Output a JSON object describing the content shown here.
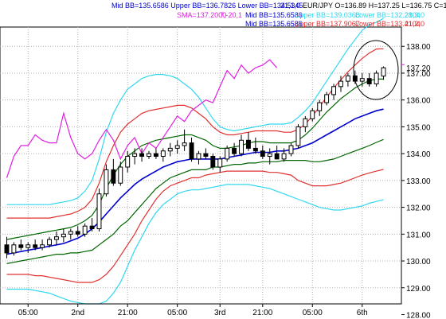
{
  "header": {
    "line1_left": "Mid BB=135.6586 Upper BB=136.7826 Lower BB=134.5345",
    "line1_mid": "21,1,0",
    "line1_right": "EUR/JPY O=136.89 H=137.25 L=136.75 C=137.20",
    "line2_sma": "SMA=137.2000",
    "line2_sma_params": "7,-20,1",
    "line2_bb": "Mid BB=135.6586",
    "line2_upper": "Upper BB=139.0368",
    "line2_lower": "Lower BB=132.2804",
    "line2_params": "21,3,0",
    "line3_bb": "Mid BB=135.6586",
    "line3_upper": "Upper BB=137.9067",
    "line3_lower": "Lower BB=133.4104",
    "line3_params": "21,2,0"
  },
  "colors": {
    "blue": "#0000cc",
    "green": "#006600",
    "red": "#e03030",
    "cyan": "#30d8f0",
    "magenta": "#e020e0",
    "grid": "#b0b0b0",
    "candle": "#000000"
  },
  "chart_data": {
    "type": "candlestick",
    "instrument": "EUR/JPY",
    "ylim": [
      128.4,
      138.6
    ],
    "yticks": [
      "138.00",
      "137.00",
      "136.00",
      "135.00",
      "134.00",
      "133.00",
      "132.00",
      "131.00",
      "130.00",
      "129.00",
      "128.00"
    ],
    "xticks": [
      "05:00",
      "2nd",
      "21:00",
      "05:00",
      "3rd",
      "21:00",
      "05:00",
      "6th"
    ],
    "last_price": "137.20",
    "candles": [
      [
        130.6,
        130.9,
        130.1,
        130.3
      ],
      [
        130.3,
        130.7,
        130.2,
        130.6
      ],
      [
        130.6,
        130.8,
        130.4,
        130.5
      ],
      [
        130.5,
        130.7,
        130.3,
        130.6
      ],
      [
        130.6,
        130.8,
        130.4,
        130.5
      ],
      [
        130.5,
        130.8,
        130.4,
        130.6
      ],
      [
        130.6,
        130.9,
        130.5,
        130.8
      ],
      [
        130.8,
        131.1,
        130.6,
        130.9
      ],
      [
        130.9,
        131.2,
        130.7,
        131.0
      ],
      [
        131.0,
        131.2,
        130.8,
        131.1
      ],
      [
        131.1,
        131.3,
        130.9,
        131.0
      ],
      [
        131.0,
        131.4,
        130.9,
        131.3
      ],
      [
        131.3,
        131.6,
        131.1,
        131.2
      ],
      [
        131.2,
        132.7,
        131.1,
        132.5
      ],
      [
        132.5,
        133.6,
        132.4,
        133.4
      ],
      [
        133.4,
        133.8,
        132.8,
        132.9
      ],
      [
        132.9,
        133.7,
        132.8,
        133.5
      ],
      [
        133.5,
        134.1,
        133.3,
        133.9
      ],
      [
        133.9,
        134.2,
        133.6,
        134.0
      ],
      [
        134.0,
        134.2,
        133.7,
        133.9
      ],
      [
        133.9,
        134.1,
        133.8,
        134.0
      ],
      [
        134.0,
        134.2,
        133.8,
        133.9
      ],
      [
        133.9,
        134.2,
        133.7,
        134.1
      ],
      [
        134.1,
        134.4,
        133.9,
        134.2
      ],
      [
        134.2,
        134.5,
        134.0,
        134.3
      ],
      [
        134.3,
        134.9,
        134.1,
        134.4
      ],
      [
        134.4,
        134.6,
        133.7,
        133.8
      ],
      [
        133.8,
        134.1,
        133.6,
        134.0
      ],
      [
        134.0,
        134.2,
        133.8,
        133.9
      ],
      [
        133.9,
        134.0,
        133.4,
        133.5
      ],
      [
        133.5,
        133.9,
        133.3,
        133.8
      ],
      [
        133.8,
        134.3,
        133.7,
        134.2
      ],
      [
        134.2,
        134.4,
        133.9,
        134.0
      ],
      [
        134.0,
        134.7,
        133.9,
        134.5
      ],
      [
        134.5,
        134.8,
        134.1,
        134.2
      ],
      [
        134.2,
        134.6,
        134.0,
        134.1
      ],
      [
        134.1,
        134.3,
        133.8,
        133.9
      ],
      [
        133.9,
        134.2,
        133.6,
        134.0
      ],
      [
        134.0,
        134.3,
        133.8,
        133.8
      ],
      [
        133.8,
        134.2,
        133.7,
        134.0
      ],
      [
        134.0,
        134.4,
        133.9,
        134.3
      ],
      [
        134.3,
        135.1,
        134.2,
        135.0
      ],
      [
        135.0,
        135.4,
        134.8,
        135.3
      ],
      [
        135.3,
        135.7,
        135.2,
        135.6
      ],
      [
        135.6,
        136.0,
        135.4,
        135.9
      ],
      [
        135.9,
        136.3,
        135.8,
        136.2
      ],
      [
        136.2,
        136.6,
        136.0,
        136.5
      ],
      [
        136.5,
        136.9,
        136.3,
        136.7
      ],
      [
        136.7,
        137.0,
        136.5,
        136.9
      ],
      [
        136.9,
        137.1,
        136.6,
        136.7
      ],
      [
        136.7,
        137.0,
        136.5,
        136.8
      ],
      [
        136.8,
        137.0,
        136.5,
        136.6
      ],
      [
        136.6,
        137.1,
        136.5,
        137.0
      ],
      [
        136.89,
        137.25,
        136.75,
        137.2
      ]
    ],
    "series": [
      {
        "name": "Mid BB 21",
        "color": "blue",
        "values": [
          130.25,
          130.3,
          130.35,
          130.4,
          130.45,
          130.5,
          130.55,
          130.6,
          130.65,
          130.75,
          130.85,
          131.0,
          131.2,
          131.45,
          131.75,
          132.05,
          132.35,
          132.6,
          132.85,
          133.05,
          133.2,
          133.35,
          133.5,
          133.6,
          133.7,
          133.75,
          133.8,
          133.8,
          133.8,
          133.8,
          133.8,
          133.85,
          133.9,
          133.95,
          134.0,
          134.05,
          134.05,
          134.05,
          134.1,
          134.1,
          134.15,
          134.2,
          134.3,
          134.4,
          134.55,
          134.7,
          134.85,
          135.0,
          135.15,
          135.3,
          135.4,
          135.5,
          135.6,
          135.66
        ]
      },
      {
        "name": "Upper BB 2",
        "color": "green",
        "values": [
          130.8,
          130.85,
          130.9,
          130.95,
          131.0,
          131.05,
          131.1,
          131.15,
          131.2,
          131.25,
          131.35,
          131.5,
          131.7,
          132.1,
          132.7,
          133.2,
          133.6,
          133.9,
          134.1,
          134.3,
          134.4,
          134.5,
          134.55,
          134.6,
          134.65,
          134.7,
          134.7,
          134.6,
          134.5,
          134.3,
          134.2,
          134.2,
          134.25,
          134.3,
          134.4,
          134.45,
          134.45,
          134.4,
          134.4,
          134.4,
          134.4,
          134.5,
          134.7,
          134.95,
          135.25,
          135.55,
          135.8,
          136.05,
          136.25,
          136.45,
          136.6,
          136.72,
          136.78,
          136.78
        ]
      },
      {
        "name": "Lower BB 2",
        "color": "green",
        "values": [
          129.9,
          129.95,
          130.0,
          130.05,
          130.1,
          130.15,
          130.2,
          130.25,
          130.25,
          130.3,
          130.3,
          130.35,
          130.4,
          130.6,
          130.8,
          131.0,
          131.3,
          131.5,
          131.8,
          132.1,
          132.4,
          132.7,
          132.9,
          133.1,
          133.2,
          133.3,
          133.4,
          133.4,
          133.4,
          133.5,
          133.5,
          133.55,
          133.6,
          133.6,
          133.65,
          133.65,
          133.7,
          133.7,
          133.7,
          133.75,
          133.75,
          133.75,
          133.75,
          133.7,
          133.7,
          133.75,
          133.8,
          133.9,
          134.0,
          134.1,
          134.2,
          134.3,
          134.42,
          134.53
        ]
      },
      {
        "name": "Upper BB 3",
        "color": "red",
        "values": [
          131.6,
          131.6,
          131.6,
          131.6,
          131.6,
          131.6,
          131.6,
          131.65,
          131.7,
          131.75,
          131.85,
          132.0,
          132.3,
          132.9,
          133.7,
          134.3,
          134.8,
          135.1,
          135.3,
          135.5,
          135.6,
          135.65,
          135.7,
          135.75,
          135.8,
          135.8,
          135.7,
          135.5,
          135.3,
          135.0,
          134.8,
          134.7,
          134.7,
          134.75,
          134.8,
          134.85,
          134.85,
          134.85,
          134.85,
          134.8,
          134.8,
          134.9,
          135.1,
          135.4,
          135.75,
          136.1,
          136.45,
          136.75,
          137.05,
          137.3,
          137.55,
          137.75,
          137.9,
          137.91
        ]
      },
      {
        "name": "Lower BB 3",
        "color": "red",
        "values": [
          129.5,
          129.5,
          129.5,
          129.5,
          129.45,
          129.45,
          129.4,
          129.35,
          129.3,
          129.25,
          129.2,
          129.2,
          129.2,
          129.3,
          129.5,
          129.8,
          130.2,
          130.6,
          131.0,
          131.5,
          131.9,
          132.3,
          132.6,
          132.8,
          132.9,
          133.0,
          133.1,
          133.1,
          133.2,
          133.25,
          133.3,
          133.35,
          133.35,
          133.35,
          133.35,
          133.35,
          133.35,
          133.3,
          133.3,
          133.25,
          133.2,
          133.0,
          132.9,
          132.8,
          132.8,
          132.8,
          132.85,
          132.9,
          133.0,
          133.1,
          133.2,
          133.28,
          133.35,
          133.41
        ]
      },
      {
        "name": "Upper BB 4",
        "color": "cyan",
        "values": [
          132.1,
          132.1,
          132.1,
          132.1,
          132.1,
          132.1,
          132.1,
          132.15,
          132.2,
          132.25,
          132.35,
          132.6,
          133.0,
          133.8,
          134.8,
          135.5,
          136.0,
          136.4,
          136.6,
          136.8,
          136.9,
          136.95,
          136.95,
          136.9,
          136.8,
          136.6,
          136.4,
          136.1,
          135.7,
          135.3,
          135.0,
          134.9,
          134.85,
          134.9,
          134.95,
          135.0,
          135.05,
          135.1,
          135.1,
          135.1,
          135.15,
          135.35,
          135.6,
          135.9,
          136.3,
          136.7,
          137.1,
          137.5,
          137.9,
          138.25,
          138.6,
          138.8,
          138.9,
          139.04
        ]
      },
      {
        "name": "Lower BB 4",
        "color": "cyan",
        "values": [
          128.95,
          128.95,
          128.95,
          128.95,
          128.9,
          128.85,
          128.8,
          128.7,
          128.6,
          128.5,
          128.45,
          128.4,
          128.4,
          128.4,
          128.5,
          128.8,
          129.2,
          129.8,
          130.4,
          130.9,
          131.4,
          131.8,
          132.1,
          132.3,
          132.5,
          132.6,
          132.65,
          132.65,
          132.7,
          132.75,
          132.8,
          132.85,
          132.85,
          132.85,
          132.85,
          132.8,
          132.75,
          132.7,
          132.6,
          132.5,
          132.4,
          132.3,
          132.2,
          132.1,
          132.0,
          131.95,
          131.9,
          131.9,
          131.95,
          132.0,
          132.05,
          132.15,
          132.22,
          132.28
        ]
      },
      {
        "name": "SMA",
        "color": "magenta",
        "start_index": 0,
        "values": [
          133.1,
          133.9,
          134.3,
          134.3,
          134.7,
          134.5,
          134.4,
          134.4,
          135.5,
          134.6,
          134.0,
          133.8,
          134.0,
          134.5,
          134.9,
          134.5,
          133.8,
          134.3,
          134.6,
          134.0,
          134.4,
          134.2,
          134.6,
          135.0,
          135.4,
          135.2,
          135.6,
          135.8,
          136.0,
          135.9,
          136.5,
          137.1,
          136.8,
          137.3,
          137.0,
          137.2,
          137.3,
          137.5,
          137.2
        ]
      }
    ],
    "sma_x_start_index": 0,
    "sma_x_end_index": 38
  }
}
